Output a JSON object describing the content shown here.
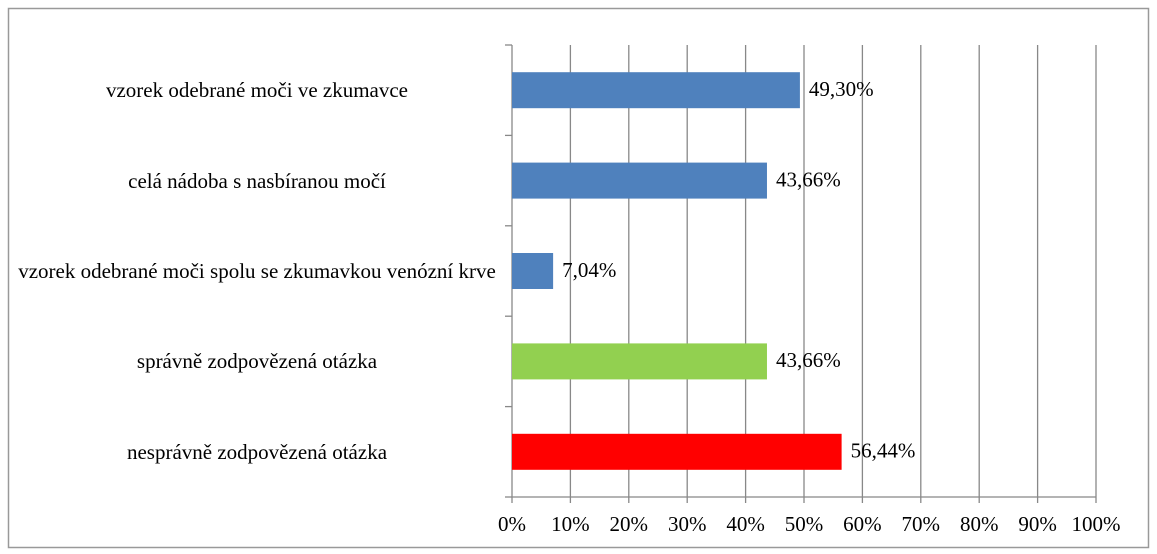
{
  "chart_data": {
    "type": "bar",
    "orientation": "horizontal",
    "categories": [
      "vzorek odebrané moči ve zkumavce",
      "celá nádoba s nasbíranou močí",
      "vzorek odebrané moči spolu se zkumavkou venózní krve",
      "správně zodpovězená otázka",
      "nesprávně zodpovězená otázka"
    ],
    "values": [
      49.3,
      43.66,
      7.04,
      43.66,
      56.44
    ],
    "value_labels": [
      "49,30%",
      "43,66%",
      "7,04%",
      "43,66%",
      "56,44%"
    ],
    "colors": [
      "#4f81bd",
      "#4f81bd",
      "#4f81bd",
      "#92d050",
      "#ff0000"
    ],
    "xlim": [
      0,
      100
    ],
    "xticks": [
      {
        "value": 0,
        "label": "0%"
      },
      {
        "value": 10,
        "label": "10%"
      },
      {
        "value": 20,
        "label": "20%"
      },
      {
        "value": 30,
        "label": "30%"
      },
      {
        "value": 40,
        "label": "40%"
      },
      {
        "value": 50,
        "label": "50%"
      },
      {
        "value": 60,
        "label": "60%"
      },
      {
        "value": 70,
        "label": "70%"
      },
      {
        "value": 80,
        "label": "80%"
      },
      {
        "value": 90,
        "label": "90%"
      },
      {
        "value": 100,
        "label": "100%"
      }
    ],
    "grid": true
  }
}
